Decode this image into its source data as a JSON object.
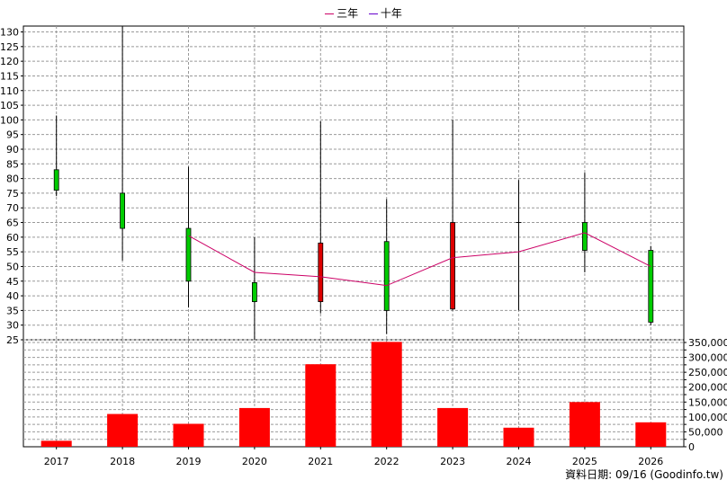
{
  "legend": {
    "three_year": "三年",
    "ten_year": "十年"
  },
  "credit": "資料日期: 09/16  (Goodinfo.tw)",
  "colors": {
    "up": "#dd0000",
    "down": "#00cc00",
    "avg_line": "#cc0066",
    "volume": "#ff0000",
    "grid": "#999999"
  },
  "chart_data": {
    "type": "candlestick_with_volume",
    "categories": [
      "2017",
      "2018",
      "2019",
      "2020",
      "2021",
      "2022",
      "2023",
      "2024",
      "2025",
      "2026"
    ],
    "price_axis": {
      "ylim": [
        25,
        132
      ],
      "ticks": [
        25,
        30,
        35,
        40,
        45,
        50,
        55,
        60,
        65,
        70,
        75,
        80,
        85,
        90,
        95,
        100,
        105,
        110,
        115,
        120,
        125,
        130
      ]
    },
    "volume_axis": {
      "ylim": [
        0,
        350000
      ],
      "ticks": [
        0,
        25000,
        50000,
        75000,
        100000,
        125000,
        150000,
        175000,
        200000,
        225000,
        250000,
        275000,
        300000,
        325000,
        350000
      ],
      "tick_labels": [
        "0",
        "",
        "50,000",
        "",
        "100,000",
        "",
        "150,000",
        "",
        "200,000",
        "",
        "250,000",
        "",
        "300,000",
        "",
        "350,000"
      ]
    },
    "candles": [
      {
        "x": "2017",
        "open": 76,
        "close": 83,
        "high": 101.5,
        "low": 74
      },
      {
        "x": "2018",
        "open": 63,
        "close": 75,
        "high": 132,
        "low": 52
      },
      {
        "x": "2019",
        "open": 45,
        "close": 63,
        "high": 84,
        "low": 36
      },
      {
        "x": "2020",
        "open": 38,
        "close": 44.5,
        "high": 60,
        "low": 25
      },
      {
        "x": "2021",
        "open": 58,
        "close": 38,
        "high": 99.5,
        "low": 34
      },
      {
        "x": "2022",
        "open": 35,
        "close": 58.5,
        "high": 73,
        "low": 27
      },
      {
        "x": "2023",
        "open": 65,
        "close": 35.5,
        "high": 100,
        "low": 35
      },
      {
        "x": "2024",
        "open": 65,
        "close": 65,
        "high": 79.5,
        "low": 35
      },
      {
        "x": "2025",
        "open": 55.5,
        "close": 65,
        "high": 82,
        "low": 48
      },
      {
        "x": "2026",
        "open": 31,
        "close": 55.5,
        "high": 57,
        "low": 30
      }
    ],
    "series": [
      {
        "name": "三年",
        "x": [
          "2019",
          "2020",
          "2021",
          "2022",
          "2023",
          "2024",
          "2025",
          "2026"
        ],
        "values": [
          60.5,
          48,
          46.5,
          43.5,
          53,
          55,
          61.5,
          50
        ]
      }
    ],
    "volumes": [
      20000,
      110000,
      77000,
      130000,
      277000,
      352000,
      130000,
      64000,
      150000,
      82000
    ],
    "grid": true,
    "legend_position": "top-center"
  }
}
